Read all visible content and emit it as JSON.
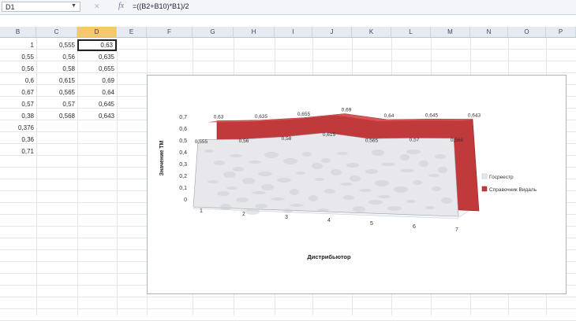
{
  "formula_bar": {
    "name_box": "D1",
    "fx_symbol": "fx",
    "formula": "=((B2+B10)*B1)/2"
  },
  "columns": [
    "B",
    "C",
    "D",
    "E",
    "F",
    "G",
    "H",
    "I",
    "J",
    "K",
    "L",
    "M",
    "N",
    "O",
    "P"
  ],
  "active_column": "D",
  "cells": {
    "B": [
      "1",
      "0,55",
      "0,56",
      "0,6",
      "0,67",
      "0,57",
      "0,38",
      "0,376",
      "0,36",
      "0,71"
    ],
    "C": [
      "0,555",
      "0,56",
      "0,58",
      "0,615",
      "0,565",
      "0,57",
      "0,568"
    ],
    "D": [
      "0,63",
      "0,635",
      "0,655",
      "0,69",
      "0,64",
      "0,645",
      "0,643"
    ]
  },
  "chart_data": {
    "type": "area",
    "xlabel": "Дистрибьютор",
    "ylabel": "Значение ТМ",
    "categories": [
      "1",
      "2",
      "3",
      "4",
      "5",
      "6",
      "7"
    ],
    "yticks": [
      "0",
      "0,1",
      "0,2",
      "0,3",
      "0,4",
      "0,5",
      "0,6",
      "0,7"
    ],
    "ylim": [
      0,
      0.7
    ],
    "legend_position": "right",
    "series": [
      {
        "name": "Госреестр",
        "values": [
          0.555,
          0.56,
          0.58,
          0.615,
          0.565,
          0.57,
          0.568
        ],
        "labels": [
          "0,555",
          "0,56",
          "0,58",
          "0,615",
          "0,565",
          "0,57",
          "0,568"
        ],
        "color": "#e8e8ec"
      },
      {
        "name": "Справочник Видаль",
        "values": [
          0.63,
          0.635,
          0.655,
          0.69,
          0.64,
          0.645,
          0.643
        ],
        "labels": [
          "0,63",
          "0,635",
          "0,655",
          "0,69",
          "0,64",
          "0,645",
          "0,643"
        ],
        "color": "#c0393b"
      }
    ]
  }
}
